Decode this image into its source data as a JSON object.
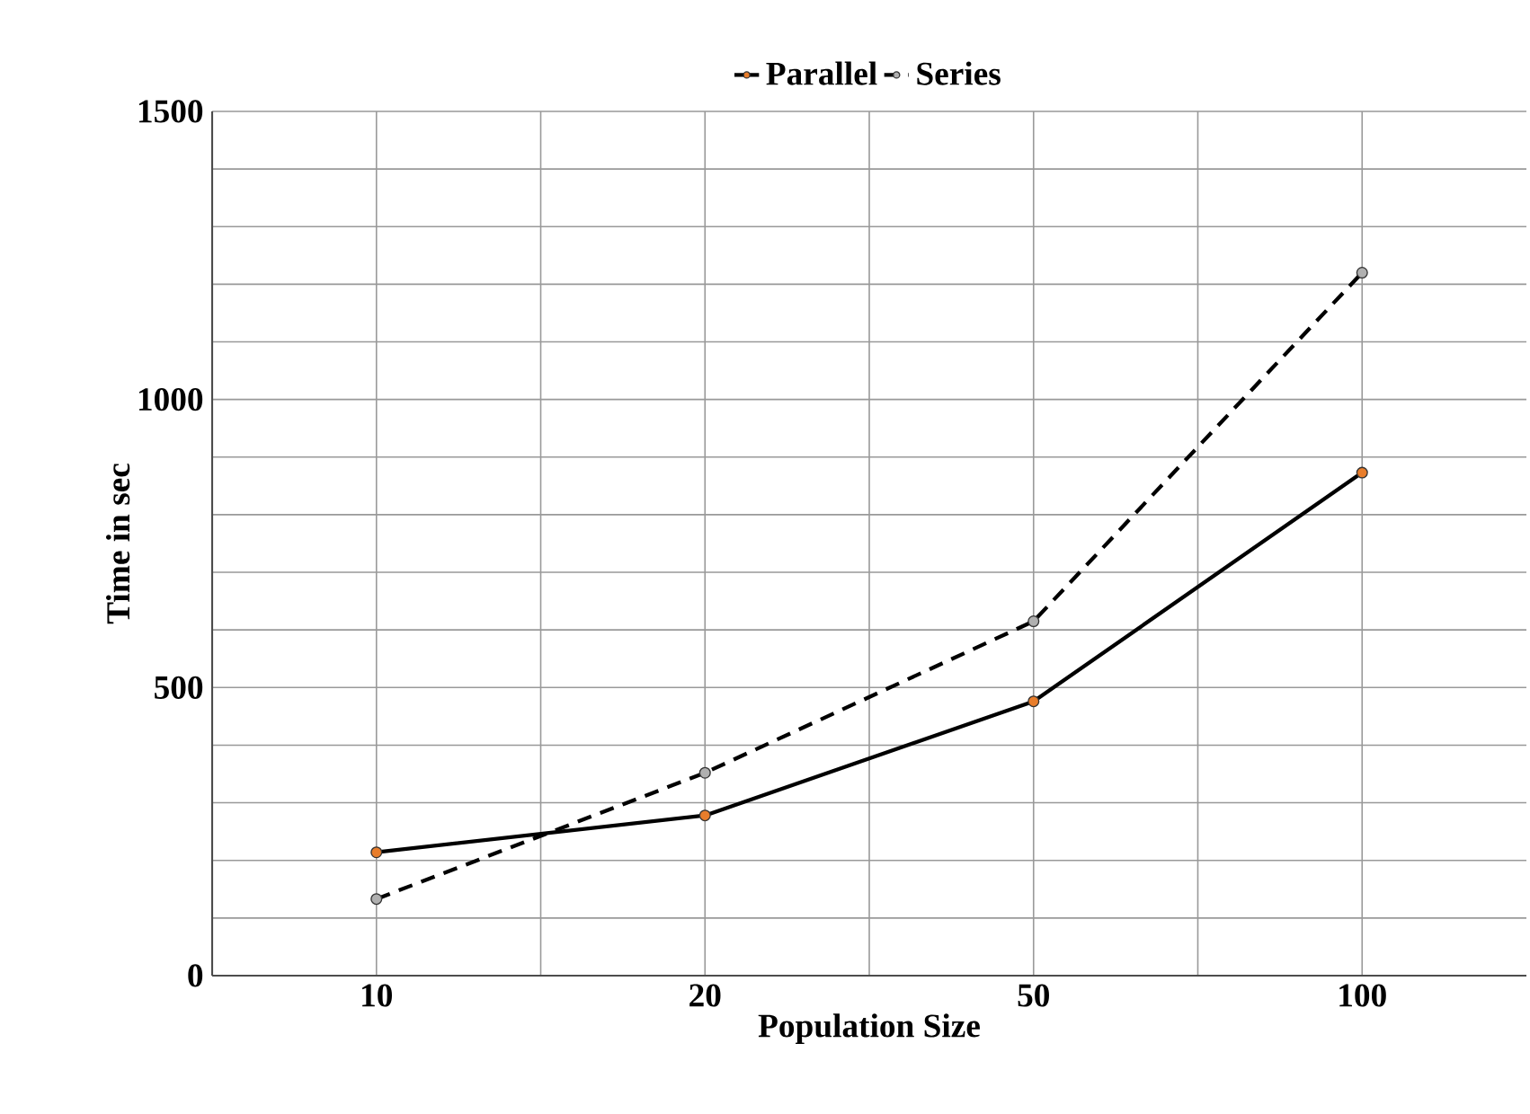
{
  "chart_data": {
    "type": "line",
    "xlabel": "Population Size",
    "ylabel": "Time in sec",
    "categories": [
      "10",
      "20",
      "50",
      "100"
    ],
    "series": [
      {
        "name": "Parallel",
        "color": "#000000",
        "values": [
          214,
          278,
          476,
          873
        ],
        "line_style": "solid"
      },
      {
        "name": "Series",
        "color": "#000000",
        "values": [
          133,
          352,
          615,
          1220
        ],
        "line_style": "dashed"
      }
    ],
    "ylim": [
      0,
      1500
    ],
    "yticks": [
      0,
      500,
      1000,
      1500
    ],
    "grid": true,
    "legend": "top",
    "marker": "circle"
  }
}
